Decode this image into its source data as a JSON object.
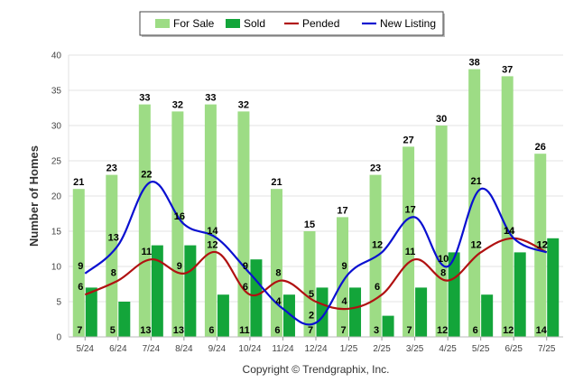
{
  "chart_data": {
    "type": "bar",
    "categories": [
      "5/24",
      "6/24",
      "7/24",
      "8/24",
      "9/24",
      "10/24",
      "11/24",
      "12/24",
      "1/25",
      "2/25",
      "3/25",
      "4/25",
      "5/25",
      "6/25",
      "7/25"
    ],
    "series": [
      {
        "name": "For Sale",
        "kind": "bar",
        "color": "#9ddc85",
        "values": [
          21,
          23,
          33,
          32,
          33,
          32,
          21,
          15,
          17,
          23,
          27,
          30,
          38,
          37,
          26
        ]
      },
      {
        "name": "Sold",
        "kind": "bar",
        "color": "#13a53a",
        "values": [
          7,
          5,
          13,
          13,
          6,
          11,
          6,
          7,
          7,
          3,
          7,
          12,
          6,
          12,
          14
        ]
      },
      {
        "name": "Pended",
        "kind": "line",
        "color": "#b01111",
        "values": [
          6,
          8,
          11,
          9,
          12,
          6,
          8,
          5,
          4,
          6,
          11,
          8,
          12,
          14,
          12
        ]
      },
      {
        "name": "New Listing",
        "kind": "line",
        "color": "#0a10d0",
        "values": [
          9,
          13,
          22,
          16,
          14,
          9,
          4,
          2,
          9,
          12,
          17,
          10,
          21,
          14,
          12
        ]
      }
    ],
    "xlabel": "",
    "ylabel": "Number of Homes",
    "ylim": [
      0,
      40
    ],
    "yticks": [
      0,
      5,
      10,
      15,
      20,
      25,
      30,
      35,
      40
    ],
    "grid": true,
    "legend_position": "top-center",
    "copyright": "Copyright © Trendgraphix, Inc."
  }
}
